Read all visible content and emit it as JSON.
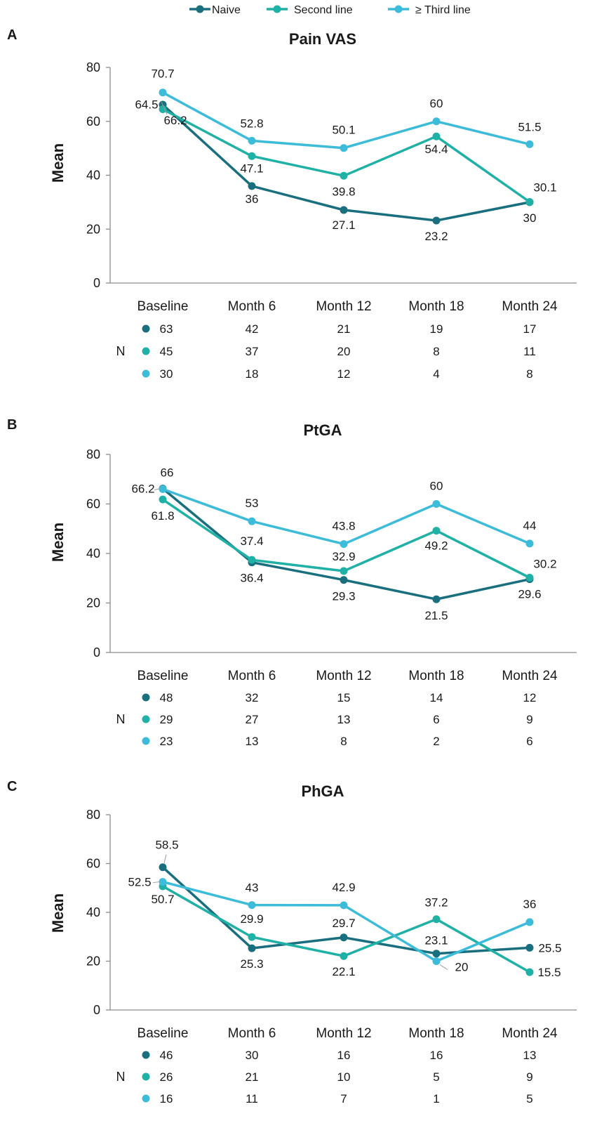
{
  "colors": {
    "naive": "#1a6f7f",
    "second": "#1fb0a6",
    "third": "#3cbcd9",
    "axis": "#8c8c8c",
    "text": "#1a1a1a"
  },
  "legend": [
    {
      "key": "naive",
      "label": "Naive"
    },
    {
      "key": "second",
      "label": "Second line"
    },
    {
      "key": "third",
      "label": "≥ Third line"
    }
  ],
  "n_label": "N",
  "chart_data": [
    {
      "panel": "A",
      "type": "line",
      "title": "Pain VAS",
      "xlabel": "",
      "ylabel": "Mean",
      "ylim": [
        0,
        80
      ],
      "yticks": [
        "0",
        "20",
        "40",
        "60",
        "80"
      ],
      "grid": false,
      "categories": [
        "Baseline",
        "Month 6",
        "Month 12",
        "Month 18",
        "Month 24"
      ],
      "series": [
        {
          "key": "naive",
          "name": "Naive",
          "values": [
            66.2,
            36,
            27.1,
            23.2,
            30
          ],
          "labels": [
            "66.2",
            "36",
            "27.1",
            "23.2",
            "30"
          ]
        },
        {
          "key": "second",
          "name": "Second line",
          "values": [
            64.5,
            47.1,
            39.8,
            54.4,
            30.1
          ],
          "labels": [
            "64.5",
            "47.1",
            "39.8",
            "54.4",
            "30.1"
          ]
        },
        {
          "key": "third",
          "name": "≥ Third line",
          "values": [
            70.7,
            52.8,
            50.1,
            60,
            51.5
          ],
          "labels": [
            "70.7",
            "52.8",
            "50.1",
            "60",
            "51.5"
          ]
        }
      ],
      "n": [
        {
          "key": "naive",
          "values": [
            "63",
            "42",
            "21",
            "19",
            "17"
          ]
        },
        {
          "key": "second",
          "values": [
            "45",
            "37",
            "20",
            "8",
            "11"
          ]
        },
        {
          "key": "third",
          "values": [
            "30",
            "18",
            "12",
            "4",
            "8"
          ]
        }
      ]
    },
    {
      "panel": "B",
      "type": "line",
      "title": "PtGA",
      "xlabel": "",
      "ylabel": "Mean",
      "ylim": [
        0,
        80
      ],
      "yticks": [
        "0",
        "20",
        "40",
        "60",
        "80"
      ],
      "grid": false,
      "categories": [
        "Baseline",
        "Month 6",
        "Month 12",
        "Month 18",
        "Month 24"
      ],
      "series": [
        {
          "key": "naive",
          "name": "Naive",
          "values": [
            66.2,
            36.4,
            29.3,
            21.5,
            29.6
          ],
          "labels": [
            "66.2",
            "36.4",
            "29.3",
            "21.5",
            "29.6"
          ]
        },
        {
          "key": "second",
          "name": "Second line",
          "values": [
            61.8,
            37.4,
            32.9,
            49.2,
            30.2
          ],
          "labels": [
            "61.8",
            "37.4",
            "32.9",
            "49.2",
            "30.2"
          ]
        },
        {
          "key": "third",
          "name": "≥ Third line",
          "values": [
            66,
            53,
            43.8,
            60,
            44
          ],
          "labels": [
            "66",
            "53",
            "43.8",
            "60",
            "44"
          ]
        }
      ],
      "n": [
        {
          "key": "naive",
          "values": [
            "48",
            "32",
            "15",
            "14",
            "12"
          ]
        },
        {
          "key": "second",
          "values": [
            "29",
            "27",
            "13",
            "6",
            "9"
          ]
        },
        {
          "key": "third",
          "values": [
            "23",
            "13",
            "8",
            "2",
            "6"
          ]
        }
      ]
    },
    {
      "panel": "C",
      "type": "line",
      "title": "PhGA",
      "xlabel": "",
      "ylabel": "Mean",
      "ylim": [
        0,
        80
      ],
      "yticks": [
        "0",
        "20",
        "40",
        "60",
        "80"
      ],
      "grid": false,
      "categories": [
        "Baseline",
        "Month 6",
        "Month 12",
        "Month 18",
        "Month 24"
      ],
      "series": [
        {
          "key": "naive",
          "name": "Naive",
          "values": [
            58.5,
            25.3,
            29.7,
            23.1,
            25.5
          ],
          "labels": [
            "58.5",
            "25.3",
            "29.7",
            "23.1",
            "25.5"
          ]
        },
        {
          "key": "second",
          "name": "Second line",
          "values": [
            50.7,
            29.9,
            22.1,
            37.2,
            15.5
          ],
          "labels": [
            "50.7",
            "29.9",
            "22.1",
            "37.2",
            "15.5"
          ]
        },
        {
          "key": "third",
          "name": "≥ Third line",
          "values": [
            52.5,
            43,
            42.9,
            20,
            36
          ],
          "labels": [
            "52.5",
            "43",
            "42.9",
            "20",
            "36"
          ]
        }
      ],
      "n": [
        {
          "key": "naive",
          "values": [
            "46",
            "30",
            "16",
            "16",
            "13"
          ]
        },
        {
          "key": "second",
          "values": [
            "26",
            "21",
            "10",
            "5",
            "9"
          ]
        },
        {
          "key": "third",
          "values": [
            "16",
            "11",
            "7",
            "1",
            "5"
          ]
        }
      ]
    }
  ]
}
